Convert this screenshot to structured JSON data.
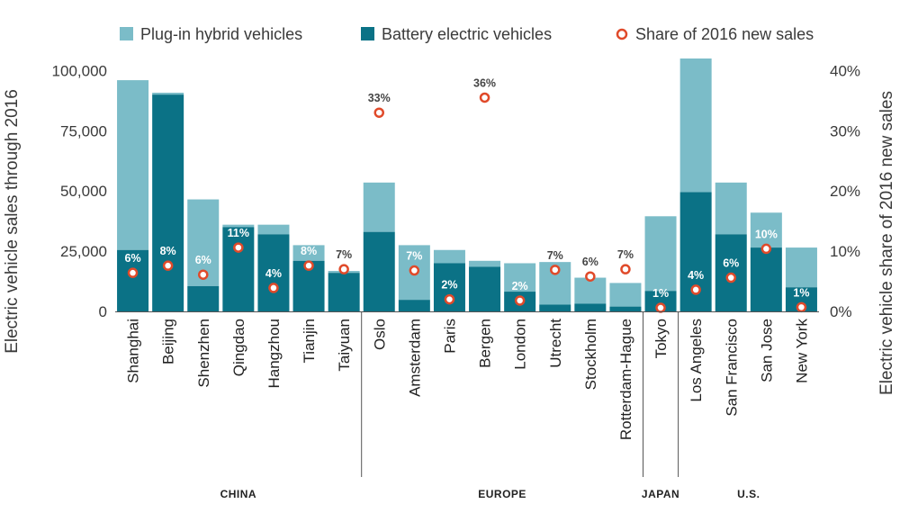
{
  "colors": {
    "phev": "#7bbcc8",
    "bev": "#0b7286",
    "share": "#e04a2a",
    "axis": "#555555"
  },
  "legend": {
    "phev": "Plug-in hybrid vehicles",
    "bev": "Battery electric vehicles",
    "share": "Share of 2016 new sales"
  },
  "chart_data": {
    "type": "bar",
    "subtype": "stacked-bar-with-dot-overlay",
    "ylabel": "Electric vehicle sales through 2016",
    "y2label": "Electric vehicle share of 2016 new sales",
    "ylim": [
      0,
      105000
    ],
    "y2lim": [
      0,
      42
    ],
    "yticks": [
      0,
      25000,
      50000,
      75000,
      100000
    ],
    "ytick_labels": [
      "0",
      "25,000",
      "50,000",
      "75,000",
      "100,000"
    ],
    "y2ticks": [
      0,
      10,
      20,
      30,
      40
    ],
    "y2tick_labels": [
      "0%",
      "10%",
      "20%",
      "30%",
      "40%"
    ],
    "categories": [
      "Shanghai",
      "Beijing",
      "Shenzhen",
      "Qingdao",
      "Hangzhou",
      "Tianjin",
      "Taiyuan",
      "Oslo",
      "Amsterdam",
      "Paris",
      "Bergen",
      "London",
      "Utrecht",
      "Stockholm",
      "Rotterdam-Hague",
      "Tokyo",
      "Los Angeles",
      "San Francisco",
      "San Jose",
      "New York"
    ],
    "series": [
      {
        "name": "Battery electric vehicles",
        "values": [
          25500,
          90000,
          10500,
          35000,
          32000,
          21000,
          16000,
          33000,
          4800,
          20000,
          18500,
          8200,
          2800,
          3200,
          2000,
          8500,
          49500,
          32000,
          26500,
          10000
        ]
      },
      {
        "name": "Plug-in hybrid vehicles",
        "values": [
          70500,
          800,
          36000,
          1000,
          4000,
          6500,
          800,
          20500,
          22700,
          5500,
          2500,
          11800,
          17700,
          10800,
          9800,
          31000,
          55500,
          21500,
          14500,
          16500
        ]
      }
    ],
    "share_series": {
      "name": "Share of 2016 new sales",
      "values": [
        6.4,
        7.6,
        6.1,
        10.6,
        3.9,
        7.6,
        7.0,
        33.0,
        6.8,
        2.0,
        35.5,
        1.8,
        6.9,
        5.8,
        7.0,
        0.6,
        3.6,
        5.6,
        10.4,
        0.7
      ],
      "labels": [
        "6%",
        "8%",
        "6%",
        "11%",
        "4%",
        "8%",
        "7%",
        "33%",
        "7%",
        "2%",
        "36%",
        "2%",
        "7%",
        "6%",
        "7%",
        "1%",
        "4%",
        "6%",
        "10%",
        "1%"
      ]
    },
    "regions": [
      {
        "name": "CHINA",
        "start": 0,
        "end": 6
      },
      {
        "name": "EUROPE",
        "start": 7,
        "end": 14
      },
      {
        "name": "JAPAN",
        "start": 15,
        "end": 15
      },
      {
        "name": "U.S.",
        "start": 16,
        "end": 19
      }
    ]
  }
}
